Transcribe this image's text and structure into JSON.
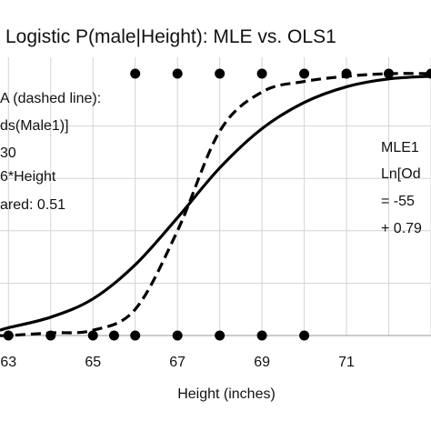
{
  "chart_data": {
    "type": "line",
    "title": "Logistic P(male|Height): MLE vs. OLS1",
    "xlabel": "Height (inches)",
    "ylabel": "",
    "xlim": [
      62.8,
      73.0
    ],
    "ylim": [
      0,
      1
    ],
    "x_ticks": [
      63,
      65,
      67,
      69,
      71
    ],
    "grid": true,
    "series": [
      {
        "name": "",
        "style": "solid",
        "color": "#000000",
        "points": [
          [
            62.8,
            0.02
          ],
          [
            63,
            0.03
          ],
          [
            64,
            0.07
          ],
          [
            65,
            0.14
          ],
          [
            66,
            0.27
          ],
          [
            67,
            0.45
          ],
          [
            68,
            0.64
          ],
          [
            69,
            0.79
          ],
          [
            70,
            0.89
          ],
          [
            71,
            0.95
          ],
          [
            72,
            0.98
          ],
          [
            73,
            0.99
          ]
        ]
      },
      {
        "name": "",
        "style": "dashed",
        "color": "#000000",
        "points": [
          [
            62.8,
            0.0
          ],
          [
            63,
            0.0
          ],
          [
            64,
            0.01
          ],
          [
            65,
            0.02
          ],
          [
            66,
            0.1
          ],
          [
            67,
            0.4
          ],
          [
            68,
            0.78
          ],
          [
            69,
            0.93
          ],
          [
            70,
            0.97
          ],
          [
            71,
            0.99
          ],
          [
            72,
            1.0
          ],
          [
            73,
            1.0
          ]
        ]
      }
    ],
    "observations": {
      "male_heights": [
        66,
        67,
        68,
        69,
        70,
        71,
        72,
        73
      ],
      "female_heights": [
        63,
        64,
        65,
        65.5,
        66,
        67,
        68,
        69,
        70
      ]
    },
    "annotations": {
      "left": [
        "A (dashed line):",
        "ds(Male1)]",
        "30",
        "6*Height",
        "ared: 0.51"
      ],
      "right": [
        "MLE1",
        "Ln[Od",
        "= -55",
        "+ 0.79"
      ]
    }
  }
}
